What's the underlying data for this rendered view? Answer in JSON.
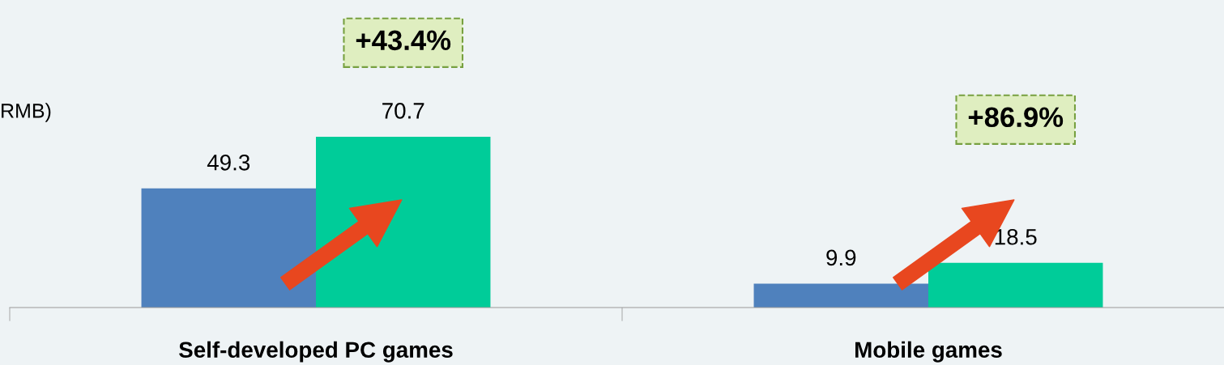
{
  "chart_data": {
    "type": "bar",
    "categories": [
      "Self-developed PC games",
      "Mobile games"
    ],
    "series": [
      {
        "color": "#4f81bd",
        "values": [
          49.3,
          9.9
        ]
      },
      {
        "color": "#00cc99",
        "values": [
          70.7,
          18.5
        ]
      }
    ],
    "data_labels": true,
    "annotations": [
      "+43.4%",
      "+86.9%",
      "RMB)"
    ]
  }
}
